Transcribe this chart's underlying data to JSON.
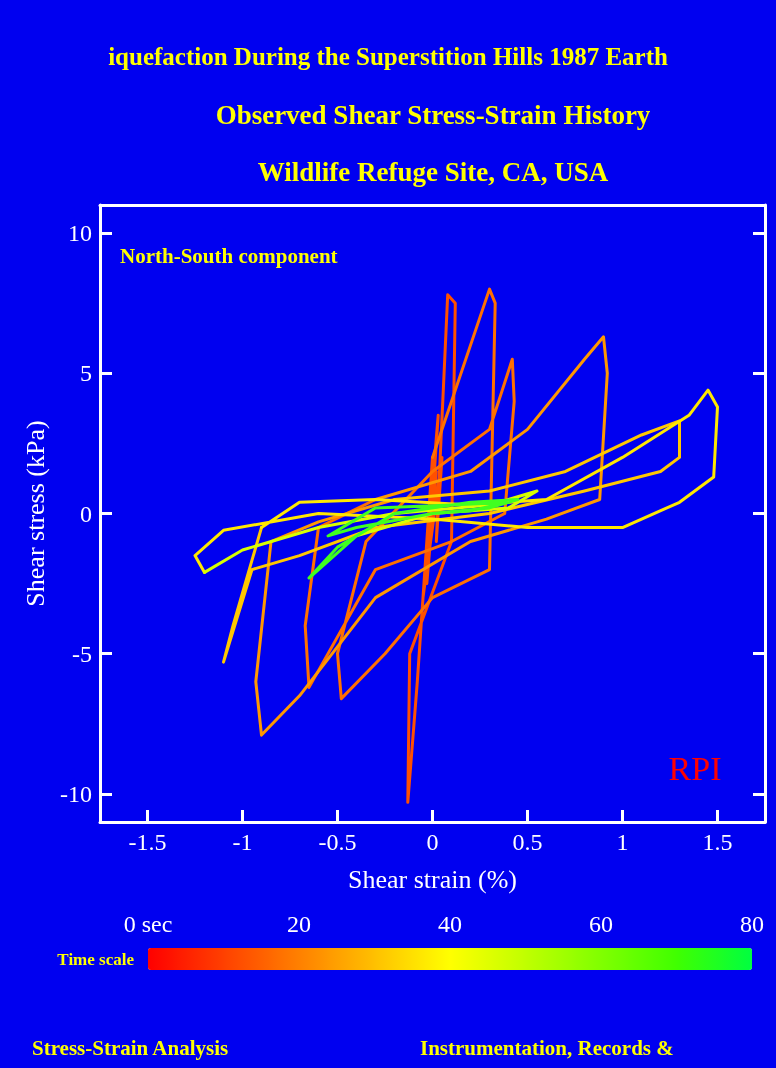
{
  "chart_data": {
    "type": "line",
    "title": "iquefaction During the Superstition Hills 1987 Earth",
    "subtitle": "Observed Shear Stress-Strain History",
    "xlabel": "Shear strain (%)",
    "ylabel": "Shear stress (kPa)",
    "clabel": "Time scale",
    "annotations": [
      "Wildlife Refuge Site, CA, USA",
      "North-South component",
      "RPI",
      "Stress-Strain Analysis",
      "Instrumentation, Records &"
    ],
    "xlim": [
      -1.75,
      1.75
    ],
    "xticks": [
      -1.5,
      -1,
      -0.5,
      0,
      0.5,
      1,
      1.5
    ],
    "ylim": [
      -11,
      11
    ],
    "yticks": [
      -10,
      -5,
      0,
      5,
      10
    ],
    "clim": [
      0,
      80
    ],
    "cticks": [
      {
        "value": 0,
        "label": "0 sec"
      },
      20,
      40,
      60,
      80
    ],
    "series": [
      {
        "color": "#ff5000",
        "x": [
          0,
          0.01,
          -0.01,
          0.02,
          -0.03,
          0.03,
          -0.05,
          0.05,
          0.02,
          0.08,
          0.12,
          0.1,
          -0.12,
          -0.13,
          -0.08,
          0
        ],
        "values": [
          0,
          0.3,
          -0.4,
          1.5,
          -2.5,
          3.5,
          -3,
          2,
          -1,
          7.8,
          7.5,
          -1,
          -5,
          -10.3,
          -6,
          2
        ]
      },
      {
        "color": "#ff7000",
        "x": [
          0,
          0.3,
          0.33,
          0.3,
          0,
          -0.25,
          -0.48,
          -0.5,
          -0.35,
          0,
          0.3,
          0.42,
          0.43,
          0.38,
          0.1,
          -0.3,
          -0.65,
          -0.67,
          -0.6,
          -0.3
        ],
        "values": [
          2,
          8,
          7.5,
          -2,
          -3,
          -5,
          -6.6,
          -5,
          -1,
          1.5,
          3,
          5.5,
          4,
          0,
          -1,
          -2,
          -6.2,
          -4,
          -0.5,
          0.5
        ]
      },
      {
        "color": "#ff9800",
        "x": [
          -0.3,
          0.2,
          0.5,
          0.8,
          0.9,
          0.92,
          0.88,
          0.6,
          0.2,
          -0.3,
          -0.7,
          -0.9,
          -0.93,
          -0.85,
          -0.6,
          -0.2
        ],
        "values": [
          0.5,
          1.5,
          3,
          5.5,
          6.3,
          5,
          0.5,
          -0.2,
          -1,
          -3,
          -6.5,
          -7.9,
          -6,
          -1,
          -0.3,
          0.5
        ]
      },
      {
        "color": "#ffc800",
        "x": [
          -0.2,
          0.3,
          0.7,
          1.1,
          1.3,
          1.3,
          1.2,
          0.8,
          0.3,
          -0.3,
          -0.7,
          -0.95,
          -1.1,
          -1.05,
          -0.9
        ],
        "values": [
          0.5,
          0.8,
          1.5,
          2.8,
          3.3,
          2,
          1.5,
          0.8,
          0,
          -0.5,
          -1.5,
          -2,
          -5.3,
          -4,
          -0.5
        ]
      },
      {
        "color": "#ffe800",
        "x": [
          -0.9,
          -0.7,
          -0.3,
          0.2,
          0.6,
          1,
          1.35,
          1.45,
          1.5,
          1.48,
          1.3,
          1,
          0.5,
          0,
          -0.6,
          -1.1,
          -1.25,
          -1.2
        ],
        "values": [
          -0.5,
          0.4,
          0.5,
          0.3,
          0.5,
          2,
          3.5,
          4.4,
          3.8,
          1.3,
          0.4,
          -0.5,
          -0.5,
          -0.2,
          0,
          -0.6,
          -1.5,
          -2.1
        ]
      },
      {
        "color": "#d8ff00",
        "x": [
          -1.2,
          -1,
          -0.6,
          -0.2,
          0.3,
          0.55,
          0.4,
          0,
          -0.4
        ],
        "values": [
          -2.1,
          -1.3,
          -0.5,
          0,
          0.3,
          0.8,
          0.2,
          0,
          -0.8
        ]
      },
      {
        "color": "#40ff20",
        "x": [
          -0.4,
          -0.65,
          -0.5,
          -0.2,
          0.2,
          0.45,
          0.3,
          0,
          -0.4,
          -0.55,
          -0.3,
          0.1,
          0.4,
          0.2,
          0
        ],
        "values": [
          -0.8,
          -2.3,
          -1.2,
          0,
          0.4,
          0.5,
          0.2,
          0,
          -0.5,
          -0.8,
          0.2,
          0.3,
          0.4,
          0.1,
          0
        ]
      }
    ]
  }
}
